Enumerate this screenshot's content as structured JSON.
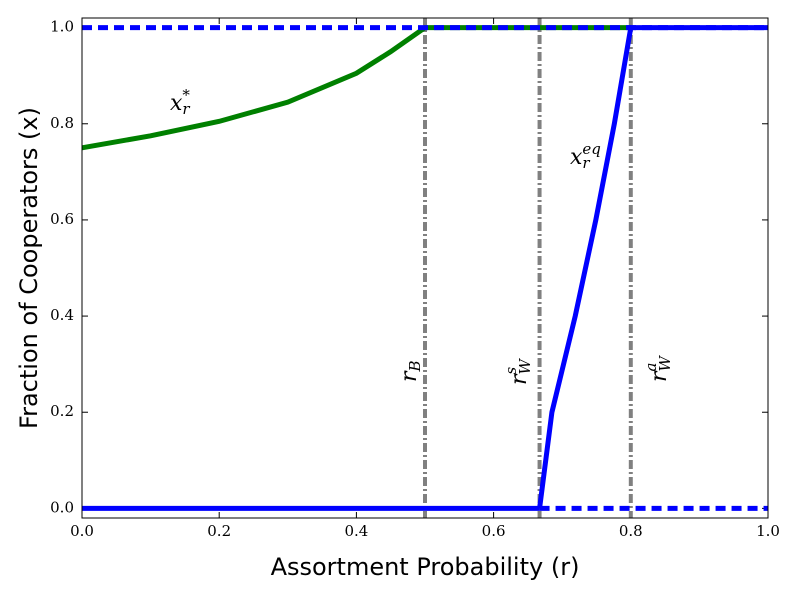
{
  "chart_data": {
    "type": "line",
    "xlabel": "Assortment Probability (r)",
    "ylabel": "Fraction of Cooperators (x)",
    "xlim": [
      0,
      1
    ],
    "ylim": [
      -0.02,
      1.02
    ],
    "xticks": [
      {
        "value": 0,
        "label": "0.0"
      },
      {
        "value": 0.2,
        "label": "0.2"
      },
      {
        "value": 0.4,
        "label": "0.4"
      },
      {
        "value": 0.6,
        "label": "0.6"
      },
      {
        "value": 0.8,
        "label": "0.8"
      },
      {
        "value": 1,
        "label": "1.0"
      }
    ],
    "yticks": [
      {
        "value": 0,
        "label": "0.0"
      },
      {
        "value": 0.2,
        "label": "0.2"
      },
      {
        "value": 0.4,
        "label": "0.4"
      },
      {
        "value": 0.6,
        "label": "0.6"
      },
      {
        "value": 0.8,
        "label": "0.8"
      },
      {
        "value": 1,
        "label": "1.0"
      }
    ],
    "series": [
      {
        "color": "#008000",
        "style": "solid",
        "x": [
          0,
          0.1,
          0.2,
          0.3,
          0.4,
          0.45,
          0.5,
          0.8
        ],
        "values": [
          0.75,
          0.775,
          0.805,
          0.845,
          0.905,
          0.95,
          1,
          1
        ]
      },
      {
        "color": "#0000ff",
        "style": "dashed",
        "x": [
          0,
          1
        ],
        "values": [
          1,
          1
        ]
      },
      {
        "color": "#0000ff",
        "style": "solid",
        "x": [
          0,
          0.667
        ],
        "values": [
          0,
          0
        ]
      },
      {
        "color": "#0000ff",
        "style": "dashed",
        "x": [
          0.667,
          1
        ],
        "values": [
          0,
          0
        ]
      },
      {
        "color": "#0000ff",
        "style": "solid",
        "x": [
          0.667,
          0.685,
          0.719,
          0.749,
          0.776,
          0.8,
          1
        ],
        "values": [
          0,
          0.2,
          0.4,
          0.6,
          0.8,
          1,
          1
        ]
      }
    ],
    "vlines": {
      "color": "#808080",
      "x": [
        0.5,
        0.667,
        0.8
      ]
    },
    "annotations": [
      {
        "base": "x",
        "sub": "r",
        "sup": "*"
      },
      {
        "base": "x",
        "sub": "r",
        "sup": "eq"
      },
      {
        "base": "r",
        "sub": "B"
      },
      {
        "base": "r",
        "sub": "W",
        "sup": "s"
      },
      {
        "base": "r",
        "sub": "W",
        "sup": "a"
      }
    ]
  }
}
